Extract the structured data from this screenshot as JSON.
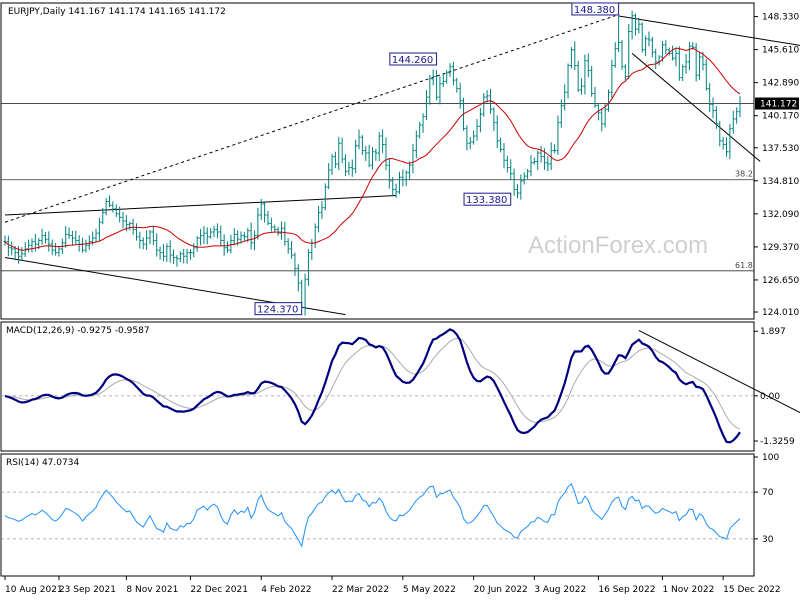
{
  "chart_data": [
    {
      "type": "ohlc",
      "header": "EURJPY,Daily  141.167 141.174 141.165 141.172",
      "watermark": "ActionForex.com",
      "ylim": [
        123.6,
        149.2
      ],
      "y_ticks": [
        "148.330",
        "145.610",
        "142.890",
        "140.170",
        "137.530",
        "134.810",
        "132.090",
        "129.370",
        "126.650",
        "124.010"
      ],
      "y_tick_values": [
        148.33,
        145.61,
        142.89,
        140.17,
        137.53,
        134.81,
        132.09,
        129.37,
        126.65,
        124.01
      ],
      "price_label": "141.172",
      "price_value": 141.172,
      "levels": [
        {
          "label": "38.2",
          "value": 134.9
        },
        {
          "label": "61.8",
          "value": 127.4
        },
        {
          "label": "",
          "value": 141.17
        }
      ],
      "annotations": [
        {
          "text": "148.380",
          "index": 182,
          "value": 148.38
        },
        {
          "text": "144.260",
          "index": 128,
          "value": 144.26
        },
        {
          "text": "133.380",
          "index": 150,
          "value": 133.38
        },
        {
          "text": "124.370",
          "index": 88,
          "value": 124.37
        }
      ],
      "x_ticks": [
        "10 Aug 2021",
        "23 Sep 2021",
        "8 Nov 2021",
        "22 Dec 2021",
        "4 Feb 2022",
        "22 Mar 2022",
        "5 May 2022",
        "20 Jun 2022",
        "3 Aug 2022",
        "16 Sep 2022",
        "1 Nov 2022",
        "15 Dec 2022"
      ],
      "x_tick_index": [
        0,
        16,
        36,
        55,
        76,
        97,
        118,
        139,
        157,
        176,
        195,
        213
      ],
      "closes": [
        129.8,
        129.3,
        129.2,
        128.9,
        128.6,
        128.8,
        129.2,
        129.5,
        129.8,
        129.6,
        129.9,
        130.3,
        130.0,
        129.6,
        129.1,
        128.9,
        129.2,
        129.7,
        130.4,
        130.3,
        130.1,
        129.9,
        129.6,
        129.1,
        129.5,
        129.8,
        130.1,
        130.5,
        131.4,
        132.2,
        133.1,
        132.8,
        132.5,
        132.1,
        131.8,
        131.5,
        131.2,
        131.3,
        130.8,
        130.2,
        129.9,
        129.6,
        130.1,
        130.6,
        129.9,
        129.1,
        128.9,
        128.6,
        129.4,
        128.7,
        128.5,
        128.4,
        128.8,
        128.6,
        128.9,
        128.9,
        129.3,
        130.1,
        130.3,
        130.5,
        130.2,
        130.6,
        130.8,
        130.6,
        129.9,
        129.3,
        129.1,
        129.9,
        130.4,
        130.0,
        130.3,
        130.2,
        130.7,
        129.7,
        130.3,
        132.0,
        132.9,
        132.0,
        131.3,
        131.0,
        130.8,
        130.5,
        130.9,
        129.8,
        129.2,
        128.7,
        127.6,
        126.4,
        124.4,
        126.7,
        128.9,
        129.7,
        131.0,
        132.2,
        132.6,
        134.3,
        135.7,
        136.8,
        136.2,
        137.9,
        136.6,
        135.6,
        135.9,
        135.8,
        137.7,
        138.4,
        137.3,
        137.1,
        136.1,
        137.2,
        137.1,
        138.5,
        137.8,
        136.1,
        134.8,
        134.1,
        133.9,
        135.1,
        134.9,
        135.5,
        136.1,
        137.3,
        138.5,
        139.4,
        140.1,
        141.7,
        143.2,
        143.4,
        141.7,
        142.8,
        143.0,
        143.7,
        144.2,
        143.1,
        142.4,
        141.4,
        139.1,
        137.9,
        138.0,
        138.5,
        139.3,
        140.3,
        141.7,
        141.8,
        140.7,
        139.6,
        138.1,
        137.4,
        136.5,
        135.9,
        135.4,
        134.1,
        133.8,
        134.8,
        135.2,
        135.6,
        136.3,
        136.4,
        137.1,
        136.8,
        136.3,
        136.2,
        137.3,
        137.3,
        139.6,
        141.0,
        142.1,
        144.3,
        145.6,
        144.3,
        142.3,
        142.6,
        144.7,
        143.9,
        142.0,
        141.0,
        140.4,
        139.5,
        140.7,
        142.1,
        144.3,
        145.7,
        146.2,
        144.2,
        143.4,
        147.1,
        148.4,
        147.3,
        147.7,
        145.6,
        146.5,
        146.4,
        145.4,
        144.6,
        145.0,
        146.0,
        145.6,
        145.3,
        144.9,
        145.3,
        143.3,
        144.2,
        144.6,
        145.9,
        145.8,
        143.5,
        145.0,
        144.4,
        142.4,
        141.1,
        140.6,
        139.5,
        138.1,
        137.8,
        137.2,
        139.1,
        139.9,
        140.5,
        141.17
      ],
      "ma_type": "SMA",
      "ma_period": 55,
      "ma_color": "#cc0000",
      "bar_color": "#008080",
      "trendlines": [
        {
          "style": "dashed",
          "from": {
            "index": 0,
            "value": 131.4
          },
          "to": {
            "index": 181,
            "value": 148.4
          }
        },
        {
          "style": "solid",
          "from": {
            "index": 182,
            "value": 148.38
          },
          "to": {
            "index": 237,
            "value": 145.9
          }
        },
        {
          "style": "solid",
          "from": {
            "index": 186,
            "value": 145.3
          },
          "to": {
            "index": 224,
            "value": 136.4
          }
        },
        {
          "style": "solid",
          "from": {
            "index": 0,
            "value": 132.0
          },
          "to": {
            "index": 116,
            "value": 133.6
          }
        },
        {
          "style": "solid",
          "from": {
            "index": 0,
            "value": 128.5
          },
          "to": {
            "index": 101,
            "value": 123.8
          }
        }
      ]
    },
    {
      "type": "line",
      "header": "MACD(12,26,9) -0.9275 -0.9587",
      "ylim": [
        -1.56,
        2.08
      ],
      "y_ticks": [
        "1.897",
        "0.00",
        "-1.3259"
      ],
      "y_tick_values": [
        1.897,
        0.0,
        -1.3259
      ],
      "series": [
        {
          "name": "MACD",
          "color": "#000080"
        },
        {
          "name": "Signal",
          "color": "#aaaaaa"
        }
      ],
      "trendlines": [
        {
          "style": "solid",
          "from": {
            "index": 188,
            "value": 1.92
          },
          "to": {
            "index": 237,
            "value": -0.55
          }
        }
      ]
    },
    {
      "type": "line",
      "header": "RSI(14) 47.0734",
      "ylim": [
        0,
        100
      ],
      "y_ticks": [
        "100",
        "70",
        "30"
      ],
      "y_tick_values": [
        100,
        70,
        30
      ],
      "series": [
        {
          "name": "RSI",
          "color": "#1e90ff"
        }
      ]
    }
  ]
}
